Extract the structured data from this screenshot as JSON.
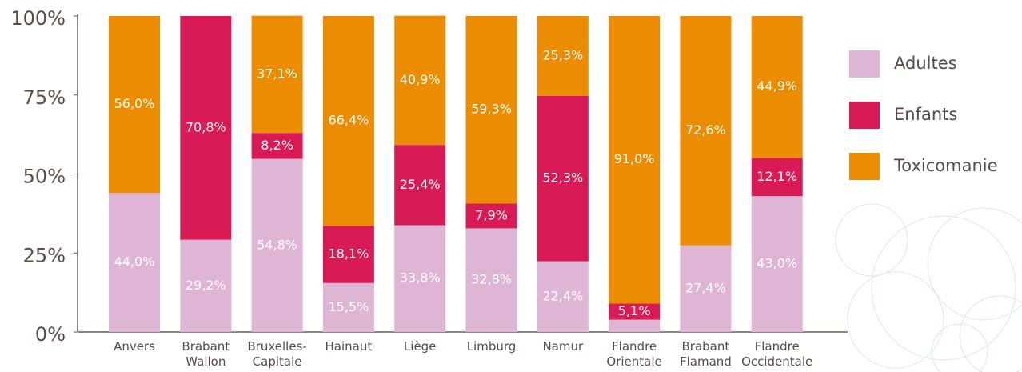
{
  "chart_data": {
    "type": "stacked-bar",
    "categories": [
      "Anvers",
      "Brabant\nWallon",
      "Bruxelles-\nCapitale",
      "Hainaut",
      "Liège",
      "Limburg",
      "Namur",
      "Flandre\nOrientale",
      "Brabant\nFlamand",
      "Flandre\nOccidentale"
    ],
    "series": [
      {
        "name": "Adultes",
        "color": "#dfb5d6",
        "values": [
          44.0,
          29.2,
          54.8,
          15.5,
          33.8,
          32.8,
          22.4,
          3.9,
          27.4,
          43.0
        ],
        "value_labels": [
          "44,0%",
          "29,2%",
          "54,8%",
          "15,5%",
          "33,8%",
          "32,8%",
          "22,4%",
          null,
          "27,4%",
          "43,0%"
        ]
      },
      {
        "name": "Enfants",
        "color": "#d81b55",
        "values": [
          null,
          70.8,
          8.2,
          18.1,
          25.4,
          7.9,
          52.3,
          5.1,
          null,
          12.1
        ],
        "value_labels": [
          null,
          "70,8%",
          "8,2%",
          "18,1%",
          "25,4%",
          "7,9%",
          "52,3%",
          "5,1%",
          null,
          "12,1%"
        ]
      },
      {
        "name": "Toxicomanie",
        "color": "#ec8c00",
        "values": [
          56.0,
          null,
          37.1,
          66.4,
          40.9,
          59.3,
          25.3,
          91.0,
          72.6,
          44.9
        ],
        "value_labels": [
          "56,0%",
          null,
          "37,1%",
          "66,4%",
          "40,9%",
          "59,3%",
          "25,3%",
          "91,0%",
          "72,6%",
          "44,9%"
        ]
      }
    ],
    "ylim": [
      0,
      100
    ],
    "yticks": [
      {
        "value": 0,
        "label": "0%"
      },
      {
        "value": 25,
        "label": "25%"
      },
      {
        "value": 50,
        "label": "50%"
      },
      {
        "value": 75,
        "label": "75%"
      },
      {
        "value": 100,
        "label": "100%"
      }
    ],
    "legend": "right"
  }
}
